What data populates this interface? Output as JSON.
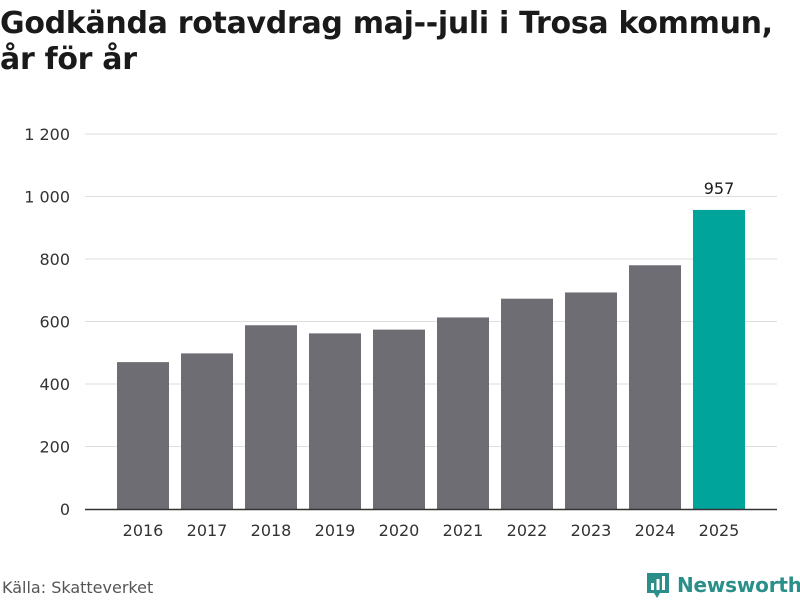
{
  "title": "Godkända rotavdrag maj--juli i Trosa kommun, år för år",
  "source": "Källa: Skatteverket",
  "brand": {
    "name": "Newsworthy",
    "icon": "bar-chart-badge-icon",
    "color": "#2a8f88"
  },
  "colors": {
    "bar": "#6e6d73",
    "highlight": "#00a49a",
    "grid": "#dddddd",
    "axis": "#333333"
  },
  "chart_data": {
    "type": "bar",
    "title": "Godkända rotavdrag maj--juli i Trosa kommun, år för år",
    "xlabel": "",
    "ylabel": "",
    "categories": [
      "2016",
      "2017",
      "2018",
      "2019",
      "2020",
      "2021",
      "2022",
      "2023",
      "2024",
      "2025"
    ],
    "values": [
      470,
      498,
      588,
      562,
      574,
      613,
      673,
      693,
      780,
      957
    ],
    "ylim": [
      0,
      1200
    ],
    "yticks": [
      0,
      200,
      400,
      600,
      800,
      1000,
      1200
    ],
    "ytick_labels": [
      "0",
      "200",
      "400",
      "600",
      "800",
      "1 000",
      "1 200"
    ],
    "highlight_index": 9,
    "data_labels": [
      {
        "index": 9,
        "text": "957"
      }
    ],
    "grid": true,
    "legend": "none"
  }
}
